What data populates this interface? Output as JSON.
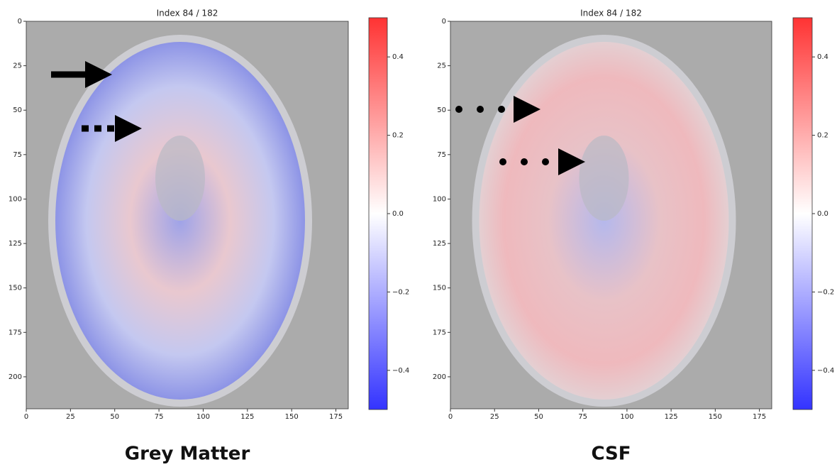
{
  "chart_data": [
    {
      "type": "heatmap",
      "title": "Index 84 / 182",
      "caption": "Grey Matter",
      "xlim": [
        0,
        182
      ],
      "ylim": [
        218,
        0
      ],
      "xticks": [
        0,
        25,
        50,
        75,
        100,
        125,
        150,
        175
      ],
      "yticks": [
        0,
        25,
        50,
        75,
        100,
        125,
        150,
        175,
        200
      ],
      "clim": [
        -0.5,
        0.5
      ],
      "cticks": [
        {
          "value": -0.4,
          "label": "−0.4"
        },
        {
          "value": -0.2,
          "label": "−0.2"
        },
        {
          "value": 0,
          "label": "0.0"
        },
        0.2,
        0.4
      ],
      "colormap": [
        "#3333ff",
        "#ffffff",
        "#ff3333"
      ],
      "background": "#ababab"
    },
    {
      "type": "heatmap",
      "title": "Index 84 / 182",
      "caption": "CSF",
      "xlim": [
        0,
        182
      ],
      "ylim": [
        218,
        0
      ],
      "xticks": [
        0,
        25,
        50,
        75,
        100,
        125,
        150,
        175
      ],
      "yticks": [
        0,
        25,
        50,
        75,
        100,
        125,
        150,
        175,
        200
      ],
      "clim": [
        -0.5,
        0.5
      ],
      "cticks": [
        {
          "value": -0.4,
          "label": "−0.4"
        },
        {
          "value": -0.2,
          "label": "−0.2"
        },
        {
          "value": 0,
          "label": "0.0"
        },
        0.2,
        0.4
      ],
      "colormap": [
        "#3333ff",
        "#ffffff",
        "#ff3333"
      ],
      "background": "#ababab"
    }
  ]
}
